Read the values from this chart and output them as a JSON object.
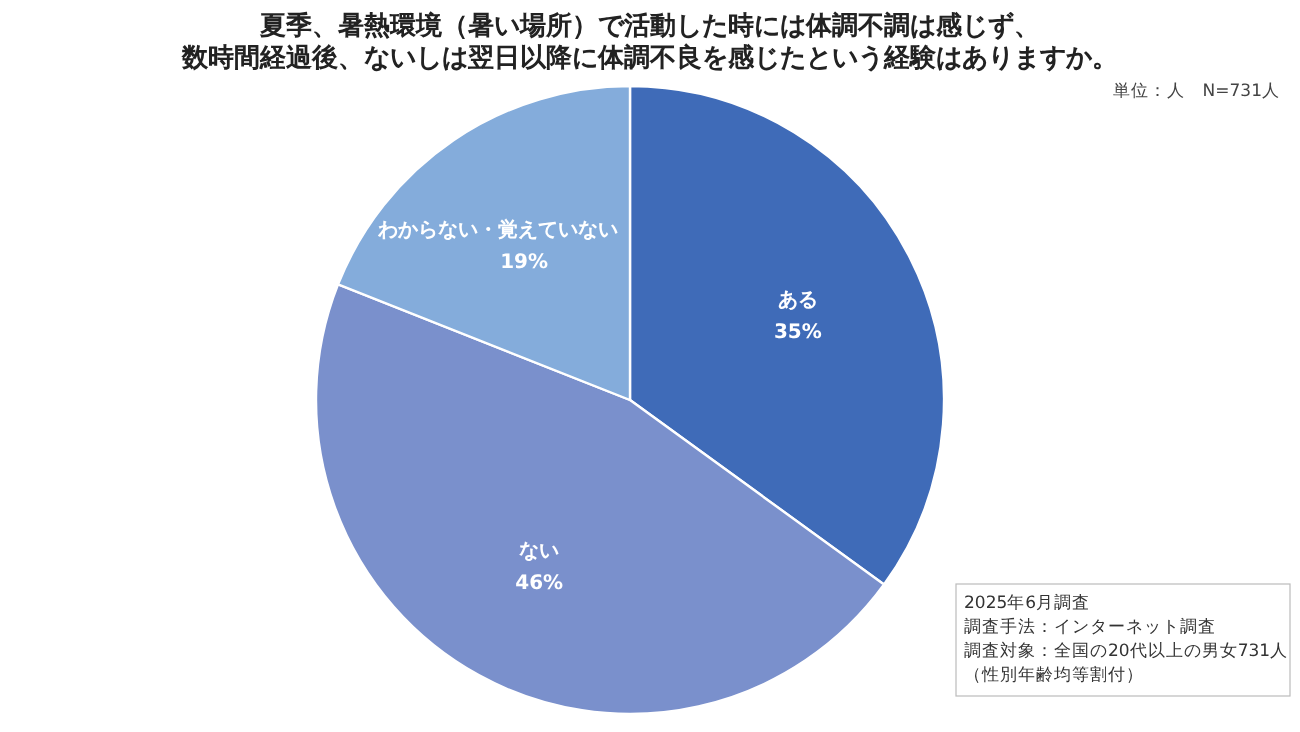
{
  "chart_data": {
    "type": "pie",
    "title": "夏季、暑熱環境（暑い場所）で活動した時には体調不調は感じず、",
    "subtitle": "数時間経過後、ないしは翌日以降に体調不良を感じたという経験はありますか。",
    "categories": [
      "ある",
      "ない",
      "わからない・覚えていない"
    ],
    "values": [
      35,
      46,
      19
    ],
    "colors": [
      "#3f6bb8",
      "#7a90cc",
      "#84acdb"
    ],
    "value_labels": [
      "35%",
      "46%",
      "19%"
    ],
    "annotations": [
      "単位：人　N=731人",
      "2025年6月調査",
      "調査手法：インターネット調査",
      "調査対象：全国の20代以上の男女731人",
      "（性別年齢均等割付）"
    ]
  }
}
